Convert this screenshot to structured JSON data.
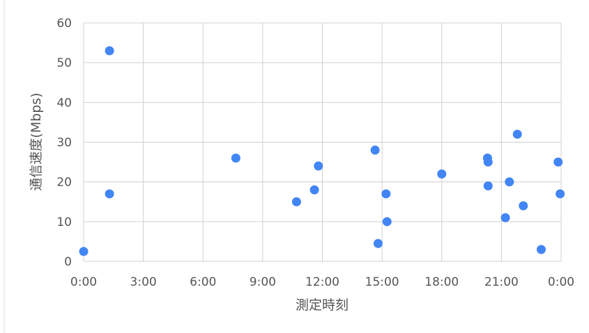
{
  "chart_data": {
    "type": "scatter",
    "title": "",
    "xlabel": "測定時刻",
    "ylabel": "通信速度(Mbps)",
    "xlim": [
      0,
      24
    ],
    "ylim": [
      0,
      60
    ],
    "grid": true,
    "legend": "none",
    "x_tick_values": [
      0,
      3,
      6,
      9,
      12,
      15,
      18,
      21,
      24
    ],
    "x_tick_labels": [
      "0:00",
      "3:00",
      "6:00",
      "9:00",
      "12:00",
      "15:00",
      "18:00",
      "21:00",
      "0:00"
    ],
    "y_tick_values": [
      0,
      10,
      20,
      30,
      40,
      50,
      60
    ],
    "y_tick_labels": [
      "0",
      "10",
      "20",
      "30",
      "40",
      "50",
      "60"
    ],
    "point_color": "#4285f4",
    "points": [
      {
        "x": 0.0,
        "y": 2.5
      },
      {
        "x": 1.3,
        "y": 53
      },
      {
        "x": 1.3,
        "y": 17
      },
      {
        "x": 7.65,
        "y": 26
      },
      {
        "x": 10.7,
        "y": 15
      },
      {
        "x": 11.6,
        "y": 18
      },
      {
        "x": 11.8,
        "y": 24
      },
      {
        "x": 14.65,
        "y": 28
      },
      {
        "x": 14.8,
        "y": 4.5
      },
      {
        "x": 15.2,
        "y": 17
      },
      {
        "x": 15.25,
        "y": 10
      },
      {
        "x": 18.0,
        "y": 22
      },
      {
        "x": 20.3,
        "y": 26
      },
      {
        "x": 20.33,
        "y": 25
      },
      {
        "x": 20.33,
        "y": 19
      },
      {
        "x": 21.2,
        "y": 11
      },
      {
        "x": 21.4,
        "y": 20
      },
      {
        "x": 21.8,
        "y": 32
      },
      {
        "x": 22.1,
        "y": 14
      },
      {
        "x": 23.0,
        "y": 3
      },
      {
        "x": 23.85,
        "y": 25
      },
      {
        "x": 23.95,
        "y": 17
      }
    ]
  }
}
